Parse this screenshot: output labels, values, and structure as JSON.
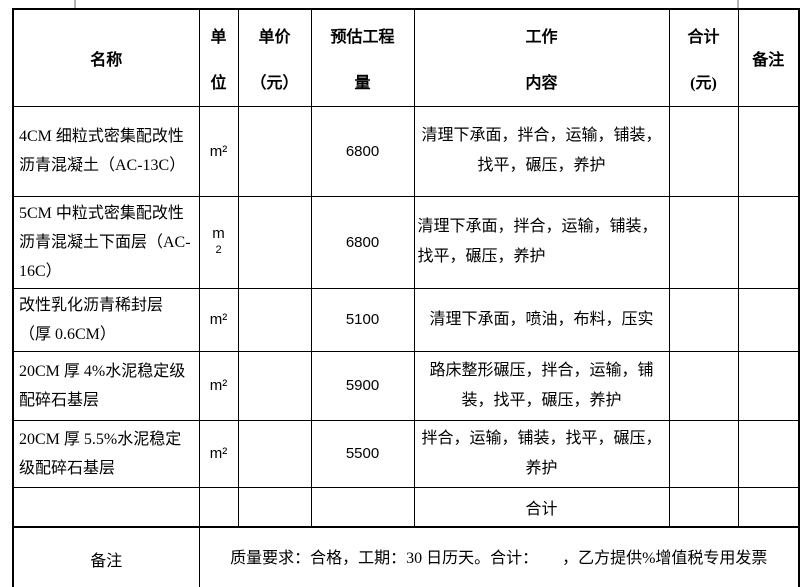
{
  "table": {
    "headers": [
      {
        "key": "name",
        "lines": [
          "名称"
        ]
      },
      {
        "key": "unit",
        "lines": [
          "单",
          "位"
        ]
      },
      {
        "key": "unit-price",
        "lines": [
          "单价",
          "（元）"
        ]
      },
      {
        "key": "quantity",
        "lines": [
          "预估工程",
          "量"
        ]
      },
      {
        "key": "work",
        "lines": [
          "工作",
          "内容"
        ]
      },
      {
        "key": "total",
        "lines": [
          "合计",
          "(元)"
        ]
      },
      {
        "key": "note",
        "lines": [
          "备注"
        ]
      }
    ],
    "rows": [
      {
        "name": "4CM 细粒式密集配改性沥青混凝土（AC-13C）",
        "unit_lines": [
          "m²"
        ],
        "unit_price": "",
        "quantity": "6800",
        "work": "清理下承面，拌合，运输，铺装，找平，碾压，养护",
        "work_align": "center",
        "total": "",
        "note": ""
      },
      {
        "name": "5CM 中粒式密集配改性沥青混凝土下面层（AC-16C）",
        "unit_lines": [
          "m",
          "2"
        ],
        "unit_price": "",
        "quantity": "6800",
        "work": "清理下承面，拌合，运输，铺装，找平，碾压，养护",
        "work_align": "left",
        "total": "",
        "note": ""
      },
      {
        "name": "改性乳化沥青稀封层（厚 0.6CM）",
        "unit_lines": [
          "m²"
        ],
        "unit_price": "",
        "quantity": "5100",
        "work": "清理下承面，喷油，布料，压实",
        "work_align": "center",
        "total": "",
        "note": ""
      },
      {
        "name": "20CM 厚 4%水泥稳定级配碎石基层",
        "unit_lines": [
          "m²"
        ],
        "unit_price": "",
        "quantity": "5900",
        "work": "路床整形碾压，拌合，运输，铺装，找平，碾压，养护",
        "work_align": "center",
        "total": "",
        "note": ""
      },
      {
        "name": "20CM 厚 5.5%水泥稳定级配碎石基层",
        "unit_lines": [
          "m²"
        ],
        "unit_price": "",
        "quantity": "5500",
        "work": "拌合，运输，铺装，找平，碾压，养护",
        "work_align": "center",
        "total": "",
        "note": ""
      }
    ],
    "subtotal_row": {
      "name": "",
      "unit": "",
      "unit_price": "",
      "quantity": "",
      "work_label": "合计",
      "total": "",
      "note": ""
    },
    "remark_row": {
      "label": "备注",
      "content": "质量要求：合格，工期：30 日历天。合计：　　，乙方提供%增值税专用发票"
    }
  },
  "colors": {
    "border": "#000000",
    "background": "#ffffff",
    "text": "#000000",
    "tick": "#b3b3b3"
  }
}
